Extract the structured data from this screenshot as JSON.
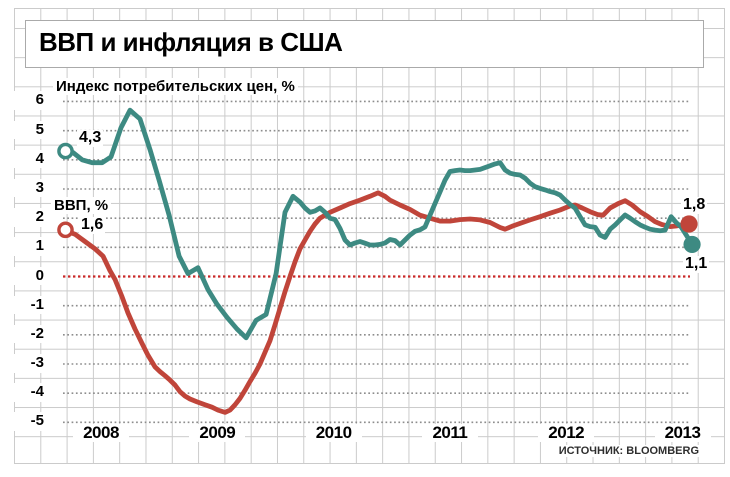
{
  "title": "ВВП и инфляция в США",
  "source": "ИСТОЧНИК: BLOOMBERG",
  "colors": {
    "cpi_line": "#3d8a82",
    "gdp_line": "#c0453a",
    "zero_line": "#c92828",
    "dotted_grid": "#8d8d8d",
    "solid_grid": "#cbcbcb",
    "box_border": "#aaaaaa",
    "text": "#000000"
  },
  "chart_data": {
    "type": "line",
    "title": "ВВП и инфляция в США",
    "grid": true,
    "legend_position": "inline-labels",
    "x_axis": {
      "min": 2007.62,
      "max": 2013.2,
      "ticks": [
        2008,
        2009,
        2010,
        2011,
        2012,
        2013
      ]
    },
    "y_axis": {
      "min": -5,
      "max": 6,
      "ticks": [
        6,
        5,
        4,
        3,
        2,
        1,
        0,
        -1,
        -2,
        -3,
        -4,
        -5
      ],
      "zero_line_highlighted": true
    },
    "series": [
      {
        "name": "ВВП, %",
        "color": "#c0453a",
        "start_label": "1,6",
        "end_label": "1,8",
        "start_value": 1.6,
        "end_value": 1.8,
        "points": [
          [
            2007.673,
            1.6
          ],
          [
            2007.776,
            1.45
          ],
          [
            2007.862,
            1.2
          ],
          [
            2007.948,
            0.95
          ],
          [
            2008.017,
            0.7
          ],
          [
            2008.077,
            0.2
          ],
          [
            2008.12,
            -0.1
          ],
          [
            2008.181,
            -0.7
          ],
          [
            2008.232,
            -1.25
          ],
          [
            2008.292,
            -1.8
          ],
          [
            2008.353,
            -2.3
          ],
          [
            2008.404,
            -2.7
          ],
          [
            2008.464,
            -3.1
          ],
          [
            2008.507,
            -3.26
          ],
          [
            2008.55,
            -3.4
          ],
          [
            2008.593,
            -3.55
          ],
          [
            2008.636,
            -3.72
          ],
          [
            2008.679,
            -3.95
          ],
          [
            2008.722,
            -4.1
          ],
          [
            2008.765,
            -4.2
          ],
          [
            2008.826,
            -4.3
          ],
          [
            2008.894,
            -4.4
          ],
          [
            2008.954,
            -4.48
          ],
          [
            2009.006,
            -4.58
          ],
          [
            2009.066,
            -4.66
          ],
          [
            2009.109,
            -4.58
          ],
          [
            2009.152,
            -4.4
          ],
          [
            2009.195,
            -4.18
          ],
          [
            2009.238,
            -3.9
          ],
          [
            2009.281,
            -3.6
          ],
          [
            2009.324,
            -3.32
          ],
          [
            2009.367,
            -3.0
          ],
          [
            2009.41,
            -2.6
          ],
          [
            2009.453,
            -2.2
          ],
          [
            2009.496,
            -1.66
          ],
          [
            2009.539,
            -1.09
          ],
          [
            2009.582,
            -0.52
          ],
          [
            2009.625,
            0.0
          ],
          [
            2009.668,
            0.5
          ],
          [
            2009.711,
            0.95
          ],
          [
            2009.754,
            1.25
          ],
          [
            2009.797,
            1.55
          ],
          [
            2009.84,
            1.8
          ],
          [
            2009.883,
            2.0
          ],
          [
            2009.926,
            2.1
          ],
          [
            2009.969,
            2.2
          ],
          [
            2010.055,
            2.35
          ],
          [
            2010.141,
            2.5
          ],
          [
            2010.227,
            2.62
          ],
          [
            2010.313,
            2.75
          ],
          [
            2010.382,
            2.87
          ],
          [
            2010.442,
            2.75
          ],
          [
            2010.485,
            2.62
          ],
          [
            2010.571,
            2.45
          ],
          [
            2010.657,
            2.3
          ],
          [
            2010.743,
            2.1
          ],
          [
            2010.829,
            2.0
          ],
          [
            2010.915,
            1.9
          ],
          [
            2011.001,
            1.9
          ],
          [
            2011.087,
            1.95
          ],
          [
            2011.173,
            1.97
          ],
          [
            2011.259,
            1.94
          ],
          [
            2011.345,
            1.85
          ],
          [
            2011.431,
            1.68
          ],
          [
            2011.474,
            1.62
          ],
          [
            2011.534,
            1.72
          ],
          [
            2011.603,
            1.82
          ],
          [
            2011.689,
            1.94
          ],
          [
            2011.775,
            2.05
          ],
          [
            2011.861,
            2.17
          ],
          [
            2011.947,
            2.28
          ],
          [
            2012.033,
            2.42
          ],
          [
            2012.076,
            2.45
          ],
          [
            2012.137,
            2.35
          ],
          [
            2012.205,
            2.22
          ],
          [
            2012.274,
            2.12
          ],
          [
            2012.317,
            2.1
          ],
          [
            2012.377,
            2.35
          ],
          [
            2012.446,
            2.5
          ],
          [
            2012.506,
            2.6
          ],
          [
            2012.566,
            2.45
          ],
          [
            2012.635,
            2.22
          ],
          [
            2012.704,
            2.05
          ],
          [
            2012.764,
            1.88
          ],
          [
            2012.824,
            1.78
          ],
          [
            2012.893,
            1.71
          ],
          [
            2012.945,
            1.73
          ],
          [
            2012.996,
            1.77
          ],
          [
            2013.056,
            1.8
          ]
        ]
      },
      {
        "name": "Индекс потребительских цен, %",
        "color": "#3d8a82",
        "start_label": "4,3",
        "end_label": "1,1",
        "start_value": 4.3,
        "end_value": 1.1,
        "points": [
          [
            2007.673,
            4.3
          ],
          [
            2007.759,
            4.25
          ],
          [
            2007.837,
            4.0
          ],
          [
            2007.923,
            3.9
          ],
          [
            2008.009,
            3.9
          ],
          [
            2008.086,
            4.1
          ],
          [
            2008.172,
            5.1
          ],
          [
            2008.249,
            5.7
          ],
          [
            2008.335,
            5.4
          ],
          [
            2008.421,
            4.35
          ],
          [
            2008.499,
            3.3
          ],
          [
            2008.585,
            2.1
          ],
          [
            2008.671,
            0.7
          ],
          [
            2008.748,
            0.1
          ],
          [
            2008.834,
            0.3
          ],
          [
            2008.92,
            -0.45
          ],
          [
            2008.997,
            -0.95
          ],
          [
            2009.083,
            -1.4
          ],
          [
            2009.169,
            -1.8
          ],
          [
            2009.247,
            -2.1
          ],
          [
            2009.333,
            -1.5
          ],
          [
            2009.419,
            -1.3
          ],
          [
            2009.505,
            0.1
          ],
          [
            2009.582,
            2.2
          ],
          [
            2009.651,
            2.75
          ],
          [
            2009.711,
            2.55
          ],
          [
            2009.754,
            2.35
          ],
          [
            2009.797,
            2.2
          ],
          [
            2009.84,
            2.25
          ],
          [
            2009.883,
            2.35
          ],
          [
            2009.926,
            2.2
          ],
          [
            2009.969,
            2.0
          ],
          [
            2010.012,
            1.95
          ],
          [
            2010.055,
            1.65
          ],
          [
            2010.098,
            1.25
          ],
          [
            2010.141,
            1.08
          ],
          [
            2010.184,
            1.15
          ],
          [
            2010.227,
            1.2
          ],
          [
            2010.27,
            1.14
          ],
          [
            2010.313,
            1.08
          ],
          [
            2010.356,
            1.08
          ],
          [
            2010.399,
            1.1
          ],
          [
            2010.442,
            1.15
          ],
          [
            2010.485,
            1.27
          ],
          [
            2010.528,
            1.23
          ],
          [
            2010.571,
            1.08
          ],
          [
            2010.657,
            1.42
          ],
          [
            2010.7,
            1.55
          ],
          [
            2010.743,
            1.6
          ],
          [
            2010.786,
            1.7
          ],
          [
            2010.829,
            2.1
          ],
          [
            2010.872,
            2.5
          ],
          [
            2010.915,
            2.9
          ],
          [
            2010.958,
            3.3
          ],
          [
            2011.001,
            3.6
          ],
          [
            2011.044,
            3.63
          ],
          [
            2011.087,
            3.65
          ],
          [
            2011.13,
            3.63
          ],
          [
            2011.173,
            3.63
          ],
          [
            2011.259,
            3.67
          ],
          [
            2011.345,
            3.8
          ],
          [
            2011.388,
            3.86
          ],
          [
            2011.431,
            3.9
          ],
          [
            2011.474,
            3.65
          ],
          [
            2011.517,
            3.54
          ],
          [
            2011.56,
            3.5
          ],
          [
            2011.603,
            3.48
          ],
          [
            2011.646,
            3.37
          ],
          [
            2011.689,
            3.2
          ],
          [
            2011.732,
            3.08
          ],
          [
            2011.775,
            3.02
          ],
          [
            2011.818,
            2.97
          ],
          [
            2011.861,
            2.91
          ],
          [
            2011.904,
            2.87
          ],
          [
            2011.947,
            2.79
          ],
          [
            2011.99,
            2.62
          ],
          [
            2012.033,
            2.47
          ],
          [
            2012.076,
            2.34
          ],
          [
            2012.119,
            2.05
          ],
          [
            2012.162,
            1.77
          ],
          [
            2012.205,
            1.71
          ],
          [
            2012.248,
            1.69
          ],
          [
            2012.291,
            1.42
          ],
          [
            2012.334,
            1.34
          ],
          [
            2012.377,
            1.62
          ],
          [
            2012.42,
            1.77
          ],
          [
            2012.463,
            1.94
          ],
          [
            2012.506,
            2.11
          ],
          [
            2012.549,
            2.0
          ],
          [
            2012.592,
            1.88
          ],
          [
            2012.635,
            1.77
          ],
          [
            2012.678,
            1.69
          ],
          [
            2012.721,
            1.62
          ],
          [
            2012.764,
            1.59
          ],
          [
            2012.807,
            1.57
          ],
          [
            2012.85,
            1.59
          ],
          [
            2012.902,
            2.05
          ],
          [
            2012.945,
            1.85
          ],
          [
            2012.988,
            1.7
          ],
          [
            2013.082,
            1.1
          ]
        ]
      }
    ]
  }
}
